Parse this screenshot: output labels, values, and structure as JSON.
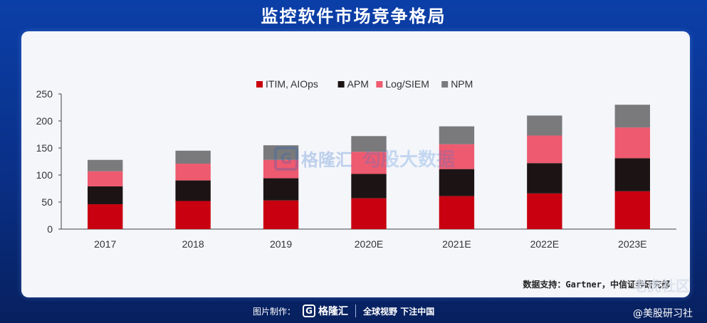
{
  "title": "监控软件市场竞争格局",
  "source": "数据支持：Gartner，中信证券研究部",
  "watermark": {
    "brand": "格隆汇",
    "brand_url": "www.gelonghui.com",
    "site": "勾股大数据",
    "site_url": "www.gogudata.com"
  },
  "corner_mark": "老虎社区",
  "footer": {
    "made_by_label": "图片制作：",
    "logo_letter": "G",
    "logo_text": "格隆汇",
    "slogan": "全球视野 下注中国",
    "attribution": "@美股研习社"
  },
  "colors": {
    "ITIM, AIOps": "#c8000f",
    "APM": "#1c1414",
    "Log/SIEM": "#ee5a6f",
    "NPM": "#7a7a7c"
  },
  "chart_data": {
    "type": "bar",
    "stacked": true,
    "categories": [
      "2017",
      "2018",
      "2019",
      "2020E",
      "2021E",
      "2022E",
      "2023E"
    ],
    "series": [
      {
        "name": "ITIM, AIOps",
        "values": [
          46,
          52,
          53,
          57,
          61,
          66,
          70
        ]
      },
      {
        "name": "APM",
        "values": [
          33,
          38,
          41,
          45,
          50,
          56,
          61
        ]
      },
      {
        "name": "Log/SIEM",
        "values": [
          28,
          31,
          34,
          41,
          46,
          51,
          57
        ]
      },
      {
        "name": "NPM",
        "values": [
          21,
          24,
          27,
          29,
          33,
          37,
          42
        ]
      }
    ],
    "ylim": [
      0,
      250
    ],
    "yticks": [
      0,
      50,
      100,
      150,
      200,
      250
    ],
    "legend_position": "top-center",
    "grid": false
  }
}
